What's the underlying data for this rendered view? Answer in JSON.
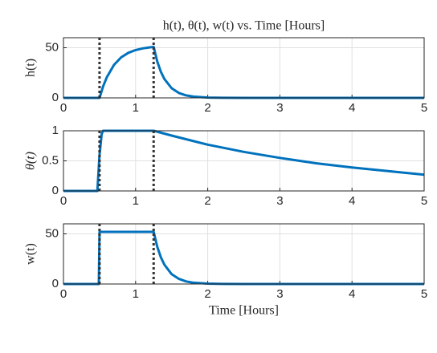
{
  "chart_data": [
    {
      "type": "line",
      "title": "h(t), θ(t), w(t) vs. Time [Hours]",
      "ylabel": "h(t)",
      "x": [
        0,
        0.45,
        0.5,
        0.55,
        0.6,
        0.7,
        0.8,
        0.9,
        1.0,
        1.1,
        1.2,
        1.25,
        1.3,
        1.35,
        1.4,
        1.5,
        1.6,
        1.7,
        1.8,
        2.0,
        2.2,
        2.5,
        3,
        3.5,
        4,
        4.5,
        5
      ],
      "values": [
        0,
        0,
        0,
        11.5,
        20.5,
        32.9,
        40.4,
        45.0,
        47.7,
        49.4,
        50.4,
        50.8,
        36.4,
        26.1,
        18.7,
        9.6,
        4.9,
        2.5,
        1.3,
        0.3,
        0.1,
        0,
        0,
        0,
        0,
        0,
        0
      ],
      "color": "#0072bd",
      "vlines": [
        0.5,
        1.25
      ],
      "vline_color": "#333333",
      "xlim": [
        0,
        5
      ],
      "xticks": [
        0,
        1,
        2,
        3,
        4,
        5
      ],
      "ylim": [
        0,
        60
      ],
      "yticks": [
        0,
        50
      ],
      "grid": true
    },
    {
      "type": "line",
      "ylabel": "θ(t)",
      "x": [
        0,
        0.47,
        0.5,
        0.53,
        0.55,
        1.25,
        1.5,
        2,
        2.5,
        3,
        3.5,
        4,
        4.5,
        5
      ],
      "values": [
        0,
        0,
        0.6,
        0.95,
        1,
        1,
        0.92,
        0.77,
        0.65,
        0.55,
        0.46,
        0.39,
        0.33,
        0.27
      ],
      "color": "#0072bd",
      "vlines": [
        0.5,
        1.25
      ],
      "vline_color": "#333333",
      "xlim": [
        0,
        5
      ],
      "xticks": [
        0,
        1,
        2,
        3,
        4,
        5
      ],
      "ylim": [
        0,
        1
      ],
      "yticks": [
        0,
        0.5,
        1
      ],
      "grid": true
    },
    {
      "type": "line",
      "ylabel": "w(t)",
      "xlabel": "Time [Hours]",
      "x": [
        0,
        0.49,
        0.5,
        1.25,
        1.3,
        1.35,
        1.4,
        1.5,
        1.6,
        1.7,
        1.8,
        2.0,
        2.2,
        2.5,
        5
      ],
      "values": [
        0,
        0,
        52,
        52,
        37.3,
        26.7,
        19.2,
        9.8,
        5.1,
        2.6,
        1.3,
        0.4,
        0.1,
        0,
        0
      ],
      "color": "#0072bd",
      "vlines": [
        0.5,
        1.25
      ],
      "vline_color": "#333333",
      "xlim": [
        0,
        5
      ],
      "xticks": [
        0,
        1,
        2,
        3,
        4,
        5
      ],
      "ylim": [
        0,
        60
      ],
      "yticks": [
        0,
        50
      ],
      "grid": true
    }
  ]
}
